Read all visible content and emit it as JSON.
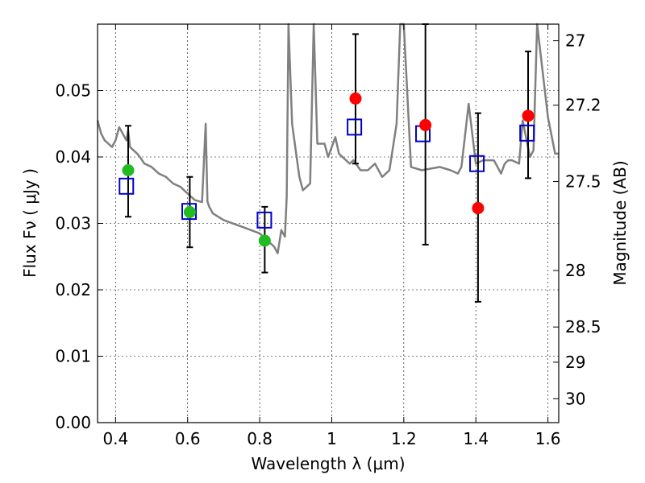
{
  "chart_data": {
    "type": "scatter",
    "xlabel": "Wavelength  λ (μm)",
    "ylabel": "Flux  Fν  ( μJy )",
    "y2label": "Magnitude (AB)",
    "xlim": [
      0.35,
      1.63
    ],
    "ylim": [
      0.0,
      0.06
    ],
    "grid": true,
    "x_ticks": [
      0.4,
      0.6,
      0.8,
      1.0,
      1.2,
      1.4,
      1.6
    ],
    "x_tick_labels": [
      "0.4",
      "0.6",
      "0.8",
      "1",
      "1.2",
      "1.4",
      "1.6"
    ],
    "y_ticks": [
      0.0,
      0.01,
      0.02,
      0.03,
      0.04,
      0.05
    ],
    "y_tick_labels": [
      "0.00",
      "0.01",
      "0.02",
      "0.03",
      "0.04",
      "0.05"
    ],
    "y2_ticks": [
      {
        "label": "27",
        "flux": 0.0575
      },
      {
        "label": "27.2",
        "flux": 0.0478
      },
      {
        "label": "27.5",
        "flux": 0.0363
      },
      {
        "label": "28",
        "flux": 0.0229
      },
      {
        "label": "28.5",
        "flux": 0.0144
      },
      {
        "label": "29",
        "flux": 0.0091
      },
      {
        "label": "30",
        "flux": 0.0036
      }
    ],
    "colors": {
      "model": "#808080",
      "green_points": "#22bb22",
      "red_points": "#ff0000",
      "model_points": "#0000cc",
      "errorbars": "#000000"
    },
    "model_sed": {
      "x": [
        0.35,
        0.36,
        0.37,
        0.38,
        0.39,
        0.4,
        0.41,
        0.42,
        0.43,
        0.435,
        0.44,
        0.45,
        0.46,
        0.47,
        0.48,
        0.5,
        0.52,
        0.54,
        0.56,
        0.58,
        0.6,
        0.62,
        0.64,
        0.65,
        0.655,
        0.66,
        0.67,
        0.7,
        0.75,
        0.8,
        0.82,
        0.84,
        0.85,
        0.86,
        0.87,
        0.875,
        0.88,
        0.89,
        0.9,
        0.91,
        0.92,
        0.94,
        0.95,
        0.96,
        0.98,
        0.99,
        1.0,
        1.01,
        1.02,
        1.05,
        1.06,
        1.08,
        1.1,
        1.12,
        1.14,
        1.16,
        1.18,
        1.19,
        1.2,
        1.22,
        1.25,
        1.3,
        1.33,
        1.35,
        1.36,
        1.38,
        1.4,
        1.42,
        1.45,
        1.47,
        1.48,
        1.49,
        1.5,
        1.52,
        1.53,
        1.55,
        1.56,
        1.57,
        1.6,
        1.62,
        1.63
      ],
      "y": [
        0.0455,
        0.0435,
        0.0425,
        0.042,
        0.0415,
        0.0425,
        0.0445,
        0.0435,
        0.0425,
        0.044,
        0.0415,
        0.041,
        0.0405,
        0.0398,
        0.039,
        0.0385,
        0.0375,
        0.037,
        0.036,
        0.0355,
        0.0345,
        0.0335,
        0.0332,
        0.045,
        0.0333,
        0.0325,
        0.0315,
        0.0305,
        0.0295,
        0.0285,
        0.0275,
        0.0265,
        0.0255,
        0.029,
        0.028,
        0.034,
        0.06,
        0.045,
        0.041,
        0.037,
        0.035,
        0.036,
        0.06,
        0.042,
        0.042,
        0.04,
        0.0415,
        0.043,
        0.0405,
        0.039,
        0.0395,
        0.038,
        0.038,
        0.039,
        0.037,
        0.038,
        0.045,
        0.06,
        0.06,
        0.0385,
        0.038,
        0.0385,
        0.038,
        0.0375,
        0.0385,
        0.048,
        0.039,
        0.0395,
        0.0395,
        0.0375,
        0.039,
        0.0395,
        0.0395,
        0.039,
        0.0455,
        0.04,
        0.041,
        0.06,
        0.046,
        0.0405,
        0.0405
      ]
    },
    "observed_green": [
      {
        "x": 0.435,
        "y": 0.038,
        "err_low": 0.031,
        "err_high": 0.0447
      },
      {
        "x": 0.606,
        "y": 0.0317,
        "err_low": 0.0264,
        "err_high": 0.037
      },
      {
        "x": 0.814,
        "y": 0.0274,
        "err_low": 0.0226,
        "err_high": 0.0325
      }
    ],
    "observed_red": [
      {
        "x": 1.066,
        "y": 0.0488,
        "err_low": 0.039,
        "err_high": 0.0585
      },
      {
        "x": 1.26,
        "y": 0.0448,
        "err_low": 0.0268,
        "err_high": 0.06
      },
      {
        "x": 1.406,
        "y": 0.0323,
        "err_low": 0.0182,
        "err_high": 0.0466
      },
      {
        "x": 1.545,
        "y": 0.0462,
        "err_low": 0.0368,
        "err_high": 0.0559
      }
    ],
    "model_photometry": [
      {
        "x": 0.43,
        "y": 0.0356
      },
      {
        "x": 0.604,
        "y": 0.0318
      },
      {
        "x": 0.813,
        "y": 0.0305
      },
      {
        "x": 1.063,
        "y": 0.0445
      },
      {
        "x": 1.253,
        "y": 0.0435
      },
      {
        "x": 1.403,
        "y": 0.039
      },
      {
        "x": 1.542,
        "y": 0.0436
      }
    ]
  }
}
